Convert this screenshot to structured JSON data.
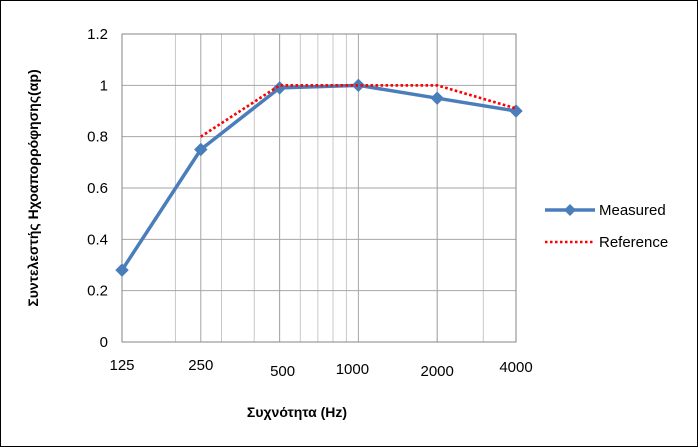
{
  "chart_data": {
    "type": "line",
    "x_scale": "log",
    "x_ticks": [
      125,
      250,
      500,
      1000,
      2000,
      4000
    ],
    "x_tick_labels": [
      "125",
      "250",
      "500",
      "1000",
      "2000",
      "4000"
    ],
    "y_ticks": [
      0,
      0.2,
      0.4,
      0.6,
      0.8,
      1,
      1.2
    ],
    "y_tick_labels": [
      "0",
      "0.2",
      "0.4",
      "0.6",
      "0.8",
      "1",
      "1.2"
    ],
    "xlim": [
      125,
      4000
    ],
    "ylim": [
      0,
      1.2
    ],
    "xlabel": "Συχνότητα (Hz)",
    "ylabel": "Συντελεστής Ηχοαπορρόφησης(αp)",
    "grid": true,
    "legend_position": "right",
    "series": [
      {
        "name": "Measured",
        "x": [
          125,
          250,
          500,
          1000,
          2000,
          4000
        ],
        "y": [
          0.28,
          0.75,
          0.99,
          1.0,
          0.95,
          0.9
        ],
        "color": "#4a7ebb",
        "style": "solid",
        "marker": "diamond"
      },
      {
        "name": "Reference",
        "x": [
          250,
          500,
          1000,
          2000,
          4000
        ],
        "y": [
          0.8,
          1.0,
          1.0,
          1.0,
          0.91
        ],
        "color": "#ff0000",
        "style": "dotted",
        "marker": "none"
      }
    ]
  }
}
